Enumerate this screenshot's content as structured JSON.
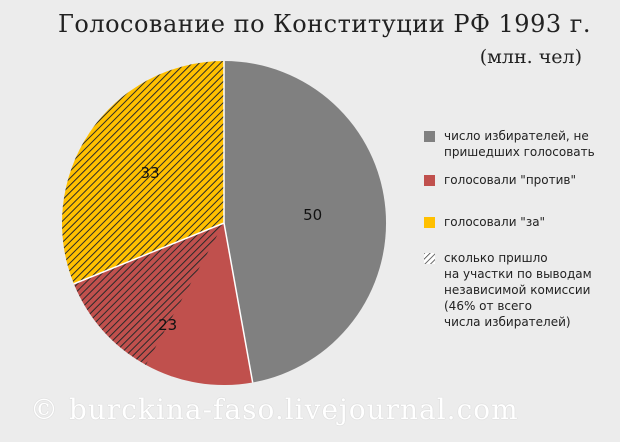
{
  "title": "Голосование по Конституции РФ 1993 г.",
  "subtitle": "(млн. чел)",
  "watermark": "© burckina-faso.livejournal.com",
  "chart_data": {
    "type": "pie",
    "title": "Голосование по Конституции РФ 1993 г.",
    "subtitle": "(млн. чел)",
    "start": "12 o'clock, clockwise",
    "slices": [
      {
        "label": "число избирателей, не\nпришедших голосовать",
        "value": 50,
        "color": "#808080",
        "hatched": false
      },
      {
        "label": "голосовали \"против\"",
        "value": 23,
        "color": "#c0504d",
        "hatched_share": 0.5
      },
      {
        "label": "голосовали \"за\"",
        "value": 33,
        "color": "#ffc000",
        "hatched_share": 1.0
      }
    ],
    "hatch_legend": "сколько пришло\nна участки по выводам\nнезависимой комиссии\n(46% от всего\nчисла избирателей)",
    "legend_position": "right"
  },
  "legend": {
    "items": [
      {
        "label": "число избирателей, не\nпришедших голосовать",
        "color": "#808080",
        "swatch": "solid"
      },
      {
        "label": "голосовали \"против\"",
        "color": "#c0504d",
        "swatch": "solid"
      },
      {
        "label": "голосовали \"за\"",
        "color": "#ffc000",
        "swatch": "solid"
      },
      {
        "label": "сколько пришло\nна участки по выводам\nнезависимой комиссии\n(46% от всего\nчисла избирателей)",
        "color": "#808080",
        "swatch": "hatch"
      }
    ]
  }
}
